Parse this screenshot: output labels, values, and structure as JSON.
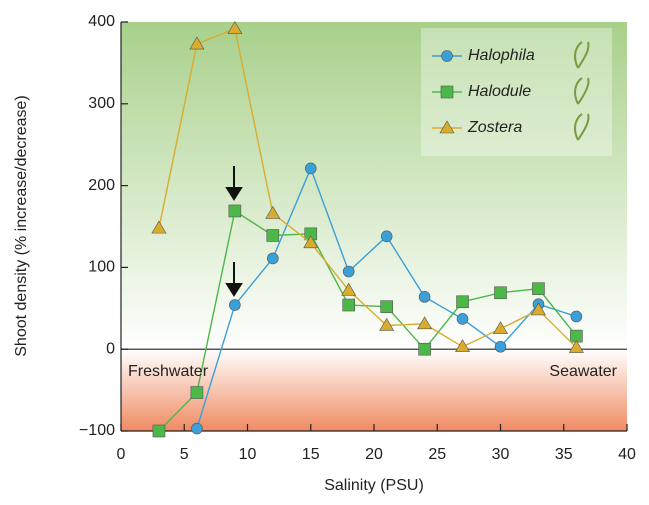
{
  "chart_data": {
    "type": "line",
    "x_label": "Salinity (PSU)",
    "y_label": "Shoot density (% increase/decrease)",
    "annotations": [
      "Freshwater",
      "Seawater"
    ],
    "xlim": [
      0,
      40
    ],
    "xticks": [
      0,
      5,
      10,
      15,
      20,
      25,
      30,
      35,
      40
    ],
    "ylim": [
      -100,
      400
    ],
    "yticks": [
      {
        "value": -100,
        "label": "−100"
      },
      0,
      100,
      200,
      300,
      400
    ],
    "series": [
      {
        "name": "Halophila",
        "color": "#3b9fd8",
        "marker": "circle",
        "x": [
          6,
          9,
          12,
          15,
          18,
          21,
          24,
          27,
          30,
          33,
          36
        ],
        "values": [
          -97,
          54,
          111,
          221,
          95,
          138,
          64,
          37,
          3,
          55,
          40
        ]
      },
      {
        "name": "Halodule",
        "color": "#4cb848",
        "marker": "square",
        "x": [
          3,
          6,
          9,
          12,
          15,
          18,
          21,
          24,
          27,
          30,
          33,
          36
        ],
        "values": [
          -100,
          -53,
          169,
          139,
          141,
          54,
          52,
          0,
          58,
          69,
          74,
          16
        ]
      },
      {
        "name": "Zostera",
        "color": "#d9ac2e",
        "marker": "triangle",
        "x": [
          3,
          6,
          9,
          12,
          15,
          18,
          21,
          24,
          27,
          30,
          33,
          36
        ],
        "values": [
          148,
          373,
          392,
          166,
          130,
          72,
          29,
          31,
          3,
          25,
          48,
          2
        ]
      }
    ]
  }
}
